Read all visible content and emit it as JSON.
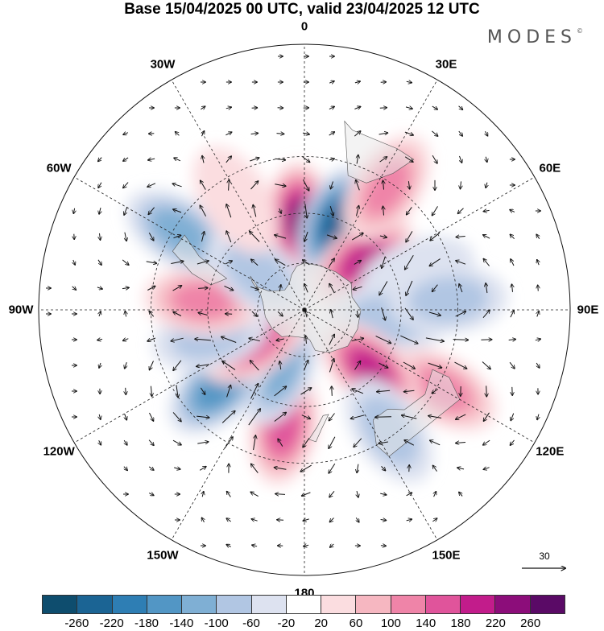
{
  "title": "Base 15/04/2025 00 UTC, valid 23/04/2025 12 UTC",
  "logo": {
    "text": "MODES",
    "mark": "©"
  },
  "map": {
    "projection": "south-polar-stereographic",
    "longitude_labels": [
      {
        "id": "lon-0",
        "text": "0",
        "lon": 0
      },
      {
        "id": "lon-30e",
        "text": "30E",
        "lon": 30
      },
      {
        "id": "lon-60e",
        "text": "60E",
        "lon": 60
      },
      {
        "id": "lon-90e",
        "text": "90E",
        "lon": 90
      },
      {
        "id": "lon-120e",
        "text": "120E",
        "lon": 120
      },
      {
        "id": "lon-150e",
        "text": "150E",
        "lon": 150
      },
      {
        "id": "lon-180",
        "text": "180",
        "lon": 180
      },
      {
        "id": "lon-150w",
        "text": "150W",
        "lon": -150
      },
      {
        "id": "lon-120w",
        "text": "120W",
        "lon": -120
      },
      {
        "id": "lon-90w",
        "text": "90W",
        "lon": -90
      },
      {
        "id": "lon-60w",
        "text": "60W",
        "lon": -60
      },
      {
        "id": "lon-30w",
        "text": "30W",
        "lon": -30
      }
    ],
    "anomaly_centers": [
      {
        "id": "pos-0",
        "lon": -3,
        "lat": -53,
        "value": 230
      },
      {
        "id": "neg-20e",
        "lon": 20,
        "lat": -52,
        "value": -250
      },
      {
        "id": "pos-50e",
        "lon": 50,
        "lat": -58,
        "value": 210
      },
      {
        "id": "pos-30e",
        "lon": 34,
        "lat": -32,
        "value": 110
      },
      {
        "id": "neg-75e",
        "lon": 72,
        "lat": -42,
        "value": -40
      },
      {
        "id": "neg-95e",
        "lon": 96,
        "lat": -55,
        "value": -70
      },
      {
        "id": "neg-88e",
        "lon": 86,
        "lat": -33,
        "value": -80
      },
      {
        "id": "pos-118e",
        "lon": 120,
        "lat": -28,
        "value": 120
      },
      {
        "id": "pos-135e",
        "lon": 132,
        "lat": -53,
        "value": 190
      },
      {
        "id": "neg-140e",
        "lon": 145,
        "lat": -32,
        "value": -60
      },
      {
        "id": "pos-175w",
        "lon": -170,
        "lat": -42,
        "value": 170
      },
      {
        "id": "neg-160w",
        "lon": -157,
        "lat": -63,
        "value": -110
      },
      {
        "id": "neg-130w",
        "lon": -132,
        "lat": -43,
        "value": -160
      },
      {
        "id": "pos-122w",
        "lon": -122,
        "lat": -65,
        "value": 150
      },
      {
        "id": "neg-100w",
        "lon": -105,
        "lat": -50,
        "value": -70
      },
      {
        "id": "pos-90w",
        "lon": -85,
        "lat": -48,
        "value": 110
      },
      {
        "id": "neg-65w",
        "lon": -58,
        "lat": -32,
        "value": -100
      },
      {
        "id": "neg-50w",
        "lon": -52,
        "lat": -65,
        "value": -80
      },
      {
        "id": "pos-20w",
        "lon": -32,
        "lat": -38,
        "value": 40
      }
    ],
    "colors": {
      "land": "#e8e8e8",
      "coast": "#555555",
      "grid": "#222222",
      "arrow": "#111111"
    }
  },
  "reference_vector": {
    "label": "30"
  },
  "colorbar": {
    "colors": [
      "#0e4d6e",
      "#1b6494",
      "#2e7eb4",
      "#5296c5",
      "#7fafd4",
      "#b1c6e3",
      "#dde2f0",
      "#ffffff",
      "#fbdde0",
      "#f6b7c1",
      "#ef84a8",
      "#e0549b",
      "#c21c8b",
      "#8c0d7a",
      "#5a0a66"
    ],
    "ticks": [
      "-260",
      "-220",
      "-180",
      "-140",
      "-100",
      "-60",
      "-20",
      "20",
      "60",
      "100",
      "140",
      "180",
      "220",
      "260"
    ]
  }
}
